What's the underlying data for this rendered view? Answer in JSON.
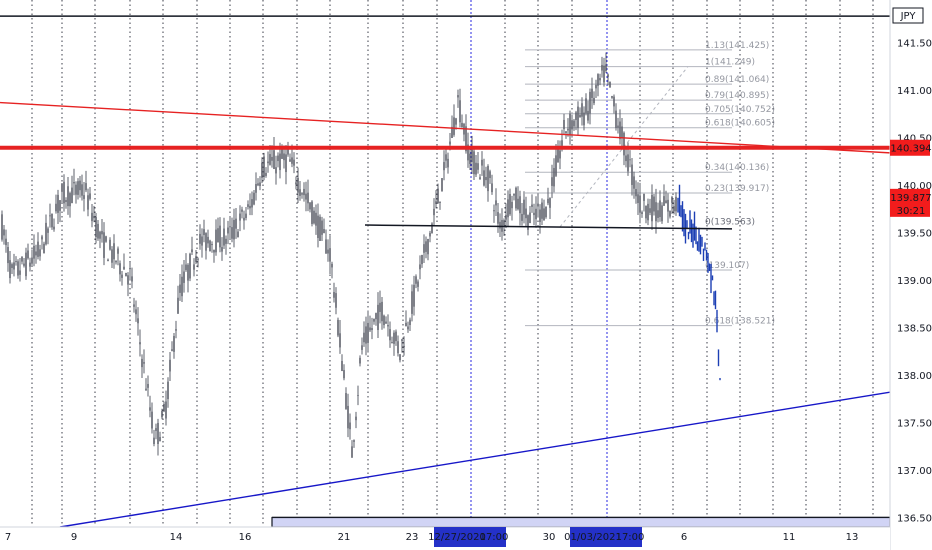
{
  "chart_data": {
    "type": "candlestick",
    "symbol": "JPY",
    "y_axis": {
      "ticks": [
        "141.500",
        "141.000",
        "140.500",
        "140.000",
        "139.500",
        "139.000",
        "138.500",
        "138.000",
        "137.500",
        "137.000",
        "136.500"
      ],
      "range": [
        136.4,
        141.95
      ]
    },
    "x_axis": {
      "ticks": [
        "7",
        "9",
        "14",
        "16",
        "21",
        "23",
        "30",
        "6",
        "11",
        "13"
      ],
      "highlight_labels": [
        "12/27/2020",
        "17:00",
        "01/03/2021",
        "17:00"
      ]
    },
    "price_badges": {
      "current": "139.877",
      "countdown": "30:21",
      "resistance": "140.394"
    },
    "fibonacci": {
      "levels": [
        {
          "label": "1.13(141.425)",
          "value": 141.425
        },
        {
          "label": "1(141.249)",
          "value": 141.249
        },
        {
          "label": "0.89(141.064)",
          "value": 141.064
        },
        {
          "label": "0.79(140.895)",
          "value": 140.895
        },
        {
          "label": "0.705(140.752)",
          "value": 140.752
        },
        {
          "label": "0.618(140.605)",
          "value": 140.605
        },
        {
          "label": "0.34(140.136)",
          "value": 140.136
        },
        {
          "label": "0.23(139.917)",
          "value": 139.917
        },
        {
          "label": "0(139.563)",
          "value": 139.563
        },
        {
          "label": "(139.107)",
          "value": 139.107
        },
        {
          "label": "0.618(138.521)",
          "value": 138.521
        }
      ]
    },
    "horizontal_lines": [
      {
        "name": "top-line",
        "value": 141.78
      },
      {
        "name": "resistance-line",
        "value": 140.394
      },
      {
        "name": "bottom-line",
        "value": 136.5
      }
    ],
    "segments": [
      {
        "name": "red-downtrend",
        "from": [
          0,
          140.87
        ],
        "to": [
          890,
          140.34
        ]
      },
      {
        "name": "blue-uptrend",
        "from": [
          60,
          136.4
        ],
        "to": [
          890,
          137.82
        ]
      },
      {
        "name": "support-line",
        "from": [
          365,
          139.58
        ],
        "to": [
          732,
          139.54
        ]
      }
    ],
    "colors": {
      "candle": "#5d606b",
      "recent_candle": "#1c3fb4",
      "red_line": "#e62222",
      "blue_line": "#1717c8",
      "fib": "#b2b5be",
      "badge_red": "#f21c1c",
      "badge_black": "#131722",
      "badge_blue": "#2431c8"
    }
  }
}
